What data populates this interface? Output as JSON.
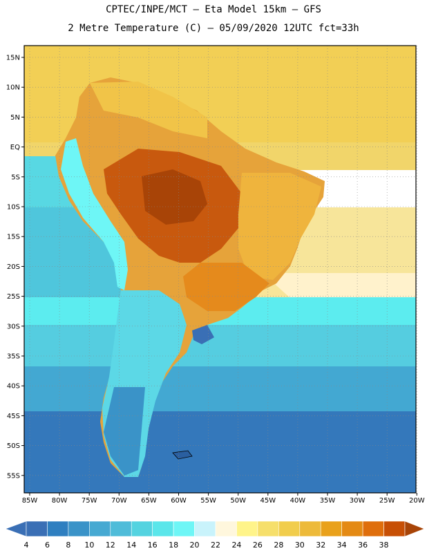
{
  "header": {
    "line1": "CPTEC/INPE/MCT –  Eta Model 15km – GFS",
    "line2": "2 Metre Temperature (C) – 05/09/2020 12UTC fct=33h"
  },
  "map": {
    "lat_labels": [
      "15N",
      "10N",
      "5N",
      "EQ",
      "5S",
      "10S",
      "15S",
      "20S",
      "25S",
      "30S",
      "35S",
      "40S",
      "45S",
      "50S",
      "55S"
    ],
    "lon_labels": [
      "85W",
      "80W",
      "75W",
      "70W",
      "65W",
      "60W",
      "55W",
      "50W",
      "45W",
      "40W",
      "35W",
      "30W",
      "25W",
      "20W"
    ],
    "frame_color": "#000000",
    "grid_style": "dotted"
  },
  "colorbar": {
    "labels": [
      "4",
      "6",
      "8",
      "10",
      "12",
      "14",
      "16",
      "18",
      "20",
      "22",
      "24",
      "26",
      "28",
      "30",
      "32",
      "34",
      "36",
      "38"
    ],
    "colors": [
      "#3a6fb5",
      "#2f7fc0",
      "#3a93c8",
      "#46a9d2",
      "#4fbcd9",
      "#54d3e0",
      "#5be6ea",
      "#6ef6f6",
      "#c9f3fb",
      "#fff7dd",
      "#fff48a",
      "#f6df6b",
      "#f1cd4c",
      "#edba3a",
      "#e9a11b",
      "#e48a14",
      "#df6e0c",
      "#c74f05",
      "#a84407"
    ],
    "min_arrow_color": "#3a6fb5",
    "max_arrow_color": "#a84407"
  }
}
